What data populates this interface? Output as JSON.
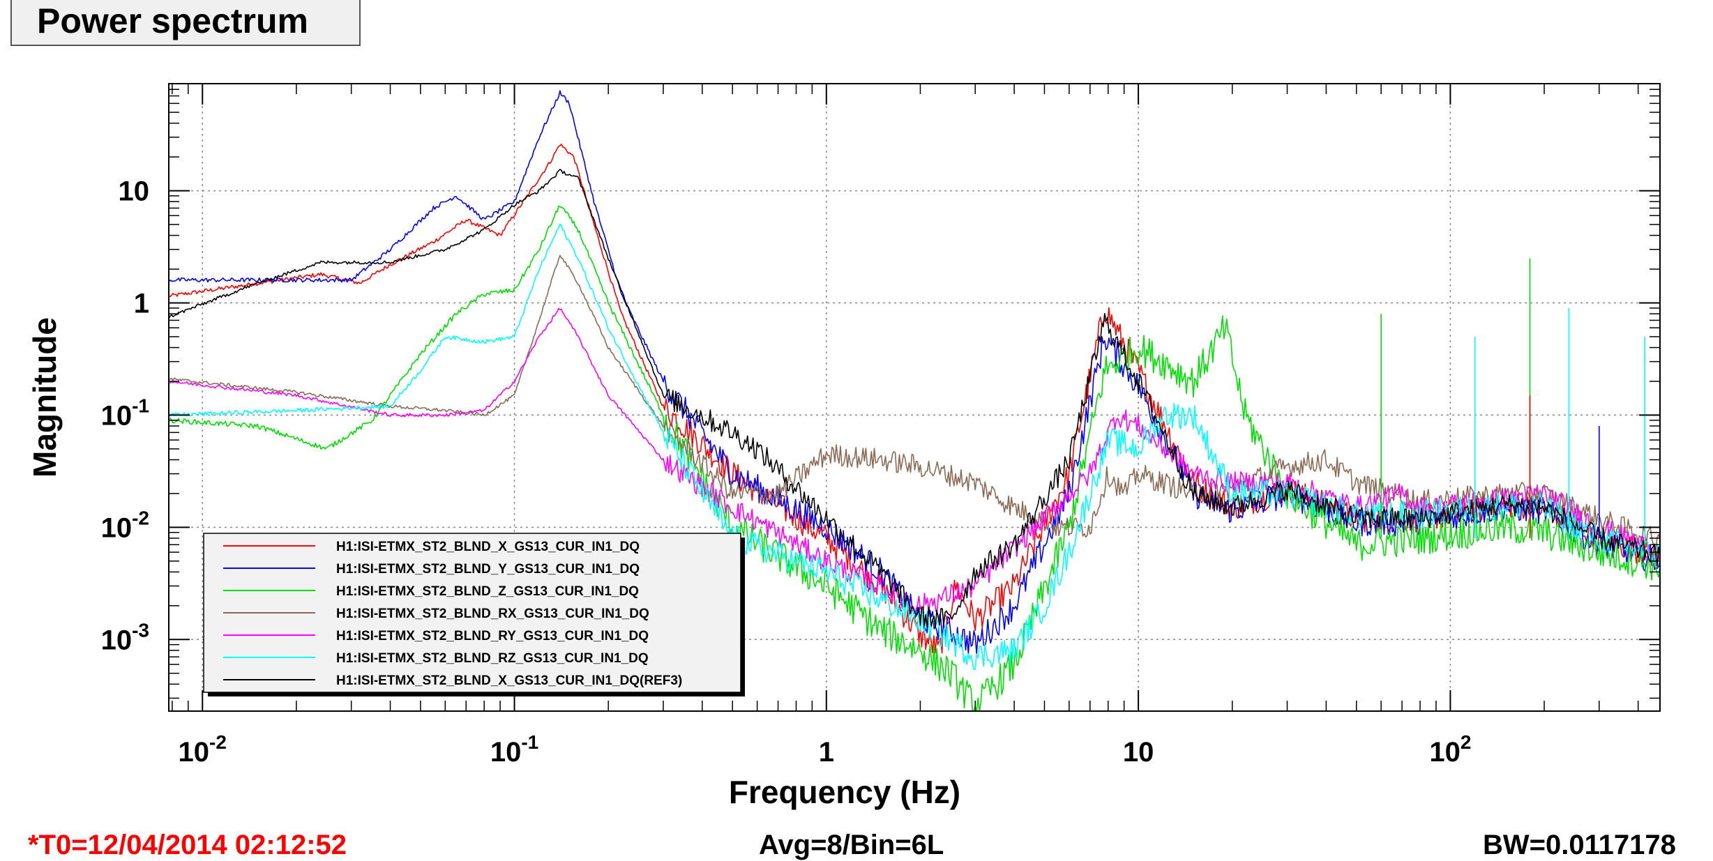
{
  "title": "Power spectrum",
  "footer": {
    "t0": "*T0=12/04/2014 02:12:52",
    "avg": "Avg=8/Bin=6L",
    "bw": "BW=0.0117178"
  },
  "chart_data": {
    "type": "line",
    "xscale": "log",
    "yscale": "log",
    "xlabel": "Frequency (Hz)",
    "ylabel": "Magnitude",
    "xlim": [
      0.0078,
      470
    ],
    "ylim": [
      0.00023,
      90
    ],
    "grid": true,
    "legend_position": "bottom-left",
    "x_ticks": [
      {
        "value": 0.01,
        "base": "10",
        "exp": "-2"
      },
      {
        "value": 0.1,
        "base": "10",
        "exp": "-1"
      },
      {
        "value": 1,
        "base": "1",
        "exp": ""
      },
      {
        "value": 10,
        "base": "10",
        "exp": ""
      },
      {
        "value": 100,
        "base": "10",
        "exp": "2"
      }
    ],
    "y_ticks": [
      {
        "value": 10,
        "base": "10",
        "exp": ""
      },
      {
        "value": 1,
        "base": "1",
        "exp": ""
      },
      {
        "value": 0.1,
        "base": "10",
        "exp": "-1"
      },
      {
        "value": 0.01,
        "base": "10",
        "exp": "-2"
      },
      {
        "value": 0.001,
        "base": "10",
        "exp": "-3"
      }
    ],
    "series": [
      {
        "name": "H1:ISI-ETMX_ST2_BLND_X_GS13_CUR_IN1_DQ",
        "color": "#ff0000",
        "noise": 0.25,
        "points": [
          [
            0.0078,
            1.15
          ],
          [
            0.024,
            1.8
          ],
          [
            0.032,
            1.5
          ],
          [
            0.04,
            2.2
          ],
          [
            0.055,
            3.5
          ],
          [
            0.07,
            5.5
          ],
          [
            0.09,
            4.0
          ],
          [
            0.11,
            9.0
          ],
          [
            0.13,
            18
          ],
          [
            0.14,
            26
          ],
          [
            0.155,
            20
          ],
          [
            0.18,
            5
          ],
          [
            0.22,
            0.8
          ],
          [
            0.3,
            0.12
          ],
          [
            0.5,
            0.03
          ],
          [
            1.0,
            0.008
          ],
          [
            1.5,
            0.003
          ],
          [
            2.0,
            0.0011
          ],
          [
            2.3,
            0.0008
          ],
          [
            2.6,
            0.003
          ],
          [
            3.0,
            0.0015
          ],
          [
            4.0,
            0.003
          ],
          [
            6.0,
            0.03
          ],
          [
            7.8,
            0.9
          ],
          [
            10,
            0.25
          ],
          [
            15,
            0.025
          ],
          [
            20,
            0.015
          ],
          [
            30,
            0.022
          ],
          [
            50,
            0.012
          ],
          [
            80,
            0.012
          ],
          [
            150,
            0.016
          ],
          [
            200,
            0.015
          ],
          [
            300,
            0.008
          ],
          [
            470,
            0.0055
          ]
        ]
      },
      {
        "name": "H1:ISI-ETMX_ST2_BLND_Y_GS13_CUR_IN1_DQ",
        "color": "#0000ff",
        "noise": 0.25,
        "points": [
          [
            0.0078,
            1.6
          ],
          [
            0.03,
            1.6
          ],
          [
            0.04,
            3.0
          ],
          [
            0.055,
            7.0
          ],
          [
            0.065,
            9.0
          ],
          [
            0.08,
            5.5
          ],
          [
            0.1,
            8.0
          ],
          [
            0.12,
            30
          ],
          [
            0.14,
            75
          ],
          [
            0.15,
            60
          ],
          [
            0.18,
            8
          ],
          [
            0.22,
            1.2
          ],
          [
            0.3,
            0.2
          ],
          [
            0.5,
            0.03
          ],
          [
            1.0,
            0.01
          ],
          [
            1.5,
            0.004
          ],
          [
            2.0,
            0.0015
          ],
          [
            2.5,
            0.0012
          ],
          [
            3.0,
            0.0009
          ],
          [
            4.0,
            0.002
          ],
          [
            6.0,
            0.02
          ],
          [
            7.8,
            0.5
          ],
          [
            10,
            0.18
          ],
          [
            15,
            0.02
          ],
          [
            20,
            0.014
          ],
          [
            30,
            0.02
          ],
          [
            50,
            0.011
          ],
          [
            80,
            0.011
          ],
          [
            150,
            0.015
          ],
          [
            200,
            0.014
          ],
          [
            300,
            0.007
          ],
          [
            470,
            0.005
          ]
        ]
      },
      {
        "name": "H1:ISI-ETMX_ST2_BLND_Z_GS13_CUR_IN1_DQ",
        "color": "#00e000",
        "noise": 0.3,
        "points": [
          [
            0.0078,
            0.09
          ],
          [
            0.015,
            0.08
          ],
          [
            0.025,
            0.05
          ],
          [
            0.035,
            0.09
          ],
          [
            0.05,
            0.35
          ],
          [
            0.065,
            0.8
          ],
          [
            0.08,
            1.2
          ],
          [
            0.1,
            1.3
          ],
          [
            0.12,
            3.0
          ],
          [
            0.14,
            7.5
          ],
          [
            0.16,
            4.5
          ],
          [
            0.2,
            1.0
          ],
          [
            0.3,
            0.1
          ],
          [
            0.5,
            0.01
          ],
          [
            1.0,
            0.003
          ],
          [
            1.5,
            0.0012
          ],
          [
            2.0,
            0.0008
          ],
          [
            2.5,
            0.0005
          ],
          [
            3.0,
            0.00025
          ],
          [
            4.0,
            0.0006
          ],
          [
            6.0,
            0.01
          ],
          [
            7.8,
            0.25
          ],
          [
            10,
            0.4
          ],
          [
            12,
            0.3
          ],
          [
            15,
            0.2
          ],
          [
            19,
            0.6
          ],
          [
            22,
            0.1
          ],
          [
            30,
            0.02
          ],
          [
            50,
            0.007
          ],
          [
            80,
            0.008
          ],
          [
            150,
            0.01
          ],
          [
            200,
            0.009
          ],
          [
            300,
            0.006
          ],
          [
            470,
            0.0045
          ]
        ]
      },
      {
        "name": "H1:ISI-ETMX_ST2_BLND_RX_GS13_CUR_IN1_DQ",
        "color": "#8b6a55",
        "noise": 0.2,
        "points": [
          [
            0.0078,
            0.21
          ],
          [
            0.02,
            0.16
          ],
          [
            0.04,
            0.12
          ],
          [
            0.06,
            0.11
          ],
          [
            0.08,
            0.1
          ],
          [
            0.1,
            0.15
          ],
          [
            0.12,
            0.7
          ],
          [
            0.14,
            2.7
          ],
          [
            0.16,
            1.5
          ],
          [
            0.2,
            0.4
          ],
          [
            0.3,
            0.08
          ],
          [
            0.5,
            0.02
          ],
          [
            0.7,
            0.02
          ],
          [
            1.0,
            0.045
          ],
          [
            1.5,
            0.04
          ],
          [
            2.0,
            0.035
          ],
          [
            3.0,
            0.025
          ],
          [
            4.0,
            0.015
          ],
          [
            5.5,
            0.01
          ],
          [
            7.0,
            0.01
          ],
          [
            8.0,
            0.03
          ],
          [
            9.0,
            0.02
          ],
          [
            10,
            0.03
          ],
          [
            15,
            0.02
          ],
          [
            20,
            0.022
          ],
          [
            30,
            0.035
          ],
          [
            40,
            0.04
          ],
          [
            50,
            0.025
          ],
          [
            80,
            0.017
          ],
          [
            150,
            0.02
          ],
          [
            200,
            0.02
          ],
          [
            300,
            0.012
          ],
          [
            470,
            0.0075
          ]
        ]
      },
      {
        "name": "H1:ISI-ETMX_ST2_BLND_RY_GS13_CUR_IN1_DQ",
        "color": "#ff00ff",
        "noise": 0.2,
        "points": [
          [
            0.0078,
            0.2
          ],
          [
            0.02,
            0.15
          ],
          [
            0.04,
            0.1
          ],
          [
            0.06,
            0.1
          ],
          [
            0.08,
            0.11
          ],
          [
            0.1,
            0.2
          ],
          [
            0.12,
            0.5
          ],
          [
            0.14,
            0.9
          ],
          [
            0.16,
            0.5
          ],
          [
            0.2,
            0.15
          ],
          [
            0.3,
            0.04
          ],
          [
            0.5,
            0.015
          ],
          [
            1.0,
            0.005
          ],
          [
            2.0,
            0.002
          ],
          [
            3.0,
            0.003
          ],
          [
            5.0,
            0.012
          ],
          [
            7.0,
            0.03
          ],
          [
            8.5,
            0.1
          ],
          [
            10,
            0.08
          ],
          [
            15,
            0.03
          ],
          [
            20,
            0.025
          ],
          [
            30,
            0.025
          ],
          [
            50,
            0.015
          ],
          [
            70,
            0.02
          ],
          [
            80,
            0.015
          ],
          [
            150,
            0.018
          ],
          [
            200,
            0.02
          ],
          [
            300,
            0.01
          ],
          [
            470,
            0.006
          ]
        ]
      },
      {
        "name": "H1:ISI-ETMX_ST2_BLND_RZ_GS13_CUR_IN1_DQ",
        "color": "#00ffff",
        "noise": 0.25,
        "points": [
          [
            0.0078,
            0.1
          ],
          [
            0.02,
            0.11
          ],
          [
            0.04,
            0.12
          ],
          [
            0.05,
            0.25
          ],
          [
            0.06,
            0.5
          ],
          [
            0.08,
            0.45
          ],
          [
            0.1,
            0.5
          ],
          [
            0.12,
            2.0
          ],
          [
            0.14,
            5.0
          ],
          [
            0.16,
            2.5
          ],
          [
            0.2,
            0.6
          ],
          [
            0.3,
            0.07
          ],
          [
            0.5,
            0.008
          ],
          [
            1.0,
            0.004
          ],
          [
            2.0,
            0.0015
          ],
          [
            3.0,
            0.0007
          ],
          [
            4.0,
            0.0008
          ],
          [
            5.0,
            0.002
          ],
          [
            6.0,
            0.006
          ],
          [
            7.0,
            0.02
          ],
          [
            8.0,
            0.06
          ],
          [
            10,
            0.05
          ],
          [
            12,
            0.1
          ],
          [
            15,
            0.1
          ],
          [
            20,
            0.02
          ],
          [
            30,
            0.02
          ],
          [
            50,
            0.013
          ],
          [
            80,
            0.013
          ],
          [
            150,
            0.016
          ],
          [
            200,
            0.015
          ],
          [
            300,
            0.008
          ],
          [
            470,
            0.0055
          ]
        ]
      },
      {
        "name": "H1:ISI-ETMX_ST2_BLND_X_GS13_CUR_IN1_DQ(REF3)",
        "color": "#000000",
        "noise": 0.2,
        "points": [
          [
            0.0078,
            0.75
          ],
          [
            0.015,
            1.5
          ],
          [
            0.024,
            2.3
          ],
          [
            0.04,
            2.3
          ],
          [
            0.06,
            3.0
          ],
          [
            0.08,
            4.5
          ],
          [
            0.1,
            7.5
          ],
          [
            0.12,
            10
          ],
          [
            0.14,
            15
          ],
          [
            0.16,
            13
          ],
          [
            0.2,
            2.5
          ],
          [
            0.3,
            0.15
          ],
          [
            0.5,
            0.07
          ],
          [
            0.6,
            0.05
          ],
          [
            1.0,
            0.012
          ],
          [
            1.5,
            0.004
          ],
          [
            2.0,
            0.0016
          ],
          [
            2.5,
            0.0015
          ],
          [
            3.0,
            0.004
          ],
          [
            4.0,
            0.007
          ],
          [
            6.0,
            0.04
          ],
          [
            7.8,
            0.7
          ],
          [
            10,
            0.2
          ],
          [
            15,
            0.02
          ],
          [
            20,
            0.015
          ],
          [
            30,
            0.022
          ],
          [
            50,
            0.012
          ],
          [
            80,
            0.012
          ],
          [
            150,
            0.016
          ],
          [
            200,
            0.015
          ],
          [
            300,
            0.008
          ],
          [
            470,
            0.0055
          ]
        ]
      }
    ],
    "spikes": [
      {
        "x": 60,
        "y": 0.8,
        "color": "#00e000"
      },
      {
        "x": 120,
        "y": 0.5,
        "color": "#00ffff"
      },
      {
        "x": 180,
        "y": 2.5,
        "color": "#00e000"
      },
      {
        "x": 180,
        "y": 0.15,
        "color": "#ff0000"
      },
      {
        "x": 240,
        "y": 0.9,
        "color": "#00ffff"
      },
      {
        "x": 300,
        "y": 0.08,
        "color": "#0000ff"
      },
      {
        "x": 420,
        "y": 0.5,
        "color": "#00ffff"
      }
    ]
  }
}
